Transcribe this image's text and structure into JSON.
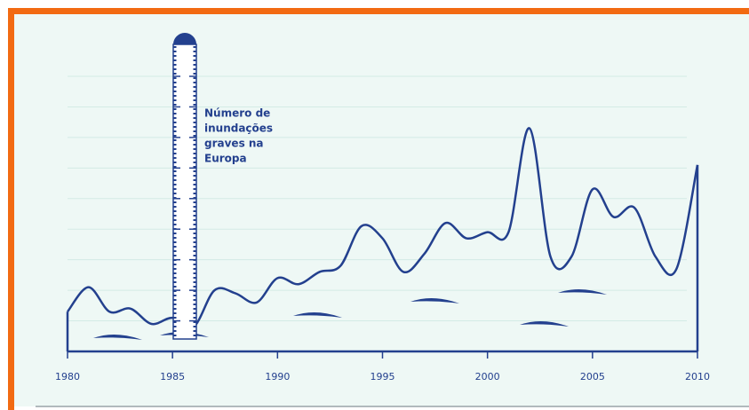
{
  "chart_data": {
    "type": "line",
    "y_label": [
      "Número de",
      "inundações",
      "graves na",
      "Europa"
    ],
    "x": [
      1980,
      1981,
      1982,
      1983,
      1984,
      1985,
      1986,
      1987,
      1988,
      1989,
      1990,
      1991,
      1992,
      1993,
      1994,
      1995,
      1996,
      1997,
      1998,
      1999,
      2000,
      2001,
      2002,
      2003,
      2004,
      2005,
      2006,
      2007,
      2008,
      2009,
      2010
    ],
    "values": [
      13,
      21,
      13,
      14,
      9,
      11,
      8,
      20,
      19,
      16,
      24,
      22,
      26,
      28,
      41,
      37,
      26,
      32,
      42,
      37,
      39,
      39,
      73,
      31,
      31,
      53,
      44,
      47,
      31,
      27,
      61
    ],
    "color": "#23408e",
    "xlim": [
      1980,
      2010
    ],
    "xticks": [
      1980,
      1985,
      1990,
      1995,
      2000,
      2005,
      2010
    ],
    "ylim": [
      0,
      90
    ],
    "yticks": [
      10,
      20,
      30,
      40,
      50,
      60,
      70,
      80,
      90
    ],
    "grid": true
  }
}
